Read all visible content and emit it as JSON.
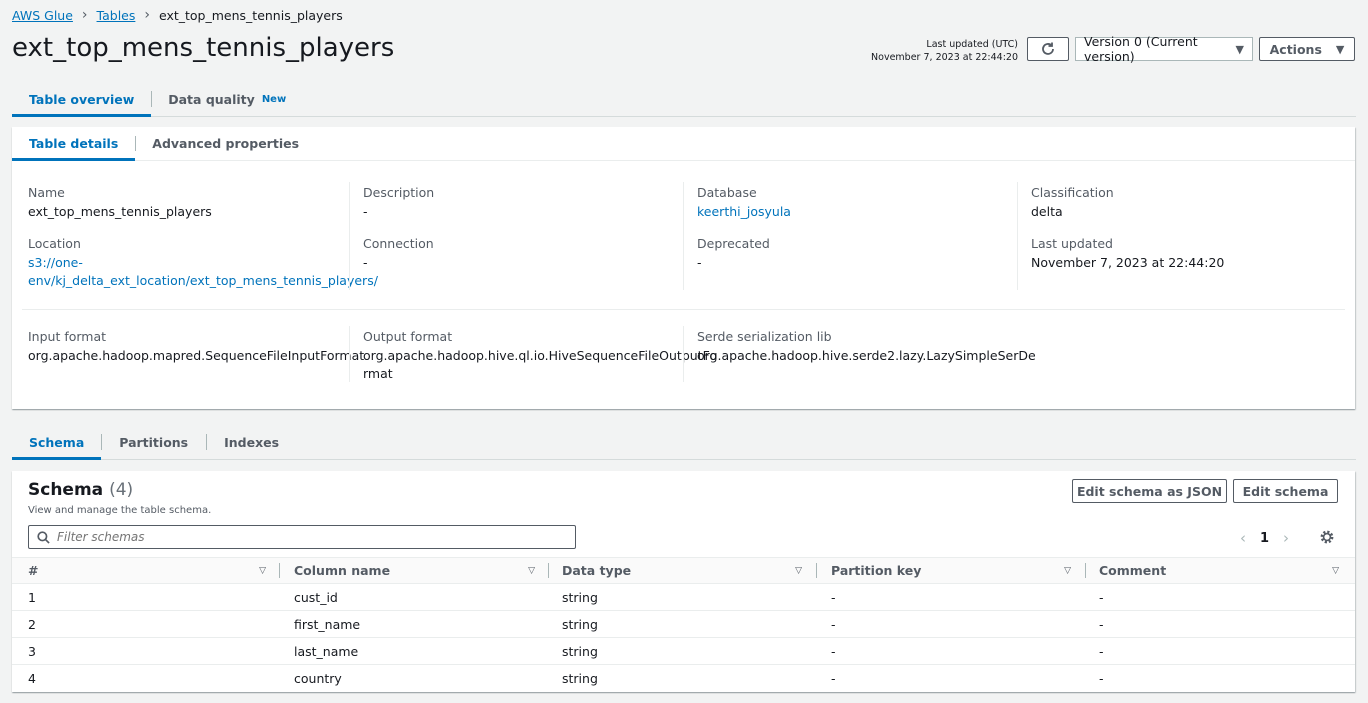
{
  "breadcrumb": [
    "AWS Glue",
    "Tables",
    "ext_top_mens_tennis_players"
  ],
  "title": "ext_top_mens_tennis_players",
  "last_updated_header": {
    "label": "Last updated (UTC)",
    "value": "November 7, 2023 at 22:44:20"
  },
  "version_select": "Version 0 (Current version)",
  "actions_label": "Actions",
  "main_tabs": [
    {
      "label": "Table overview"
    },
    {
      "label": "Data quality",
      "badge": "New"
    }
  ],
  "detail_tabs": [
    "Table details",
    "Advanced properties"
  ],
  "details": {
    "name": {
      "label": "Name",
      "value": "ext_top_mens_tennis_players"
    },
    "description": {
      "label": "Description",
      "value": "-"
    },
    "database": {
      "label": "Database",
      "value": "keerthi_josyula"
    },
    "classification": {
      "label": "Classification",
      "value": "delta"
    },
    "location": {
      "label": "Location",
      "line1": "s3://one-",
      "line2": "env/kj_delta_ext_location/ext_top_mens_tennis_players/"
    },
    "connection": {
      "label": "Connection",
      "value": "-"
    },
    "deprecated": {
      "label": "Deprecated",
      "value": "-"
    },
    "last_updated": {
      "label": "Last updated",
      "value": "November 7, 2023 at 22:44:20"
    },
    "input_format": {
      "label": "Input format",
      "value": "org.apache.hadoop.mapred.SequenceFileInputFormat"
    },
    "output_format": {
      "label": "Output format",
      "line1": "org.apache.hadoop.hive.ql.io.HiveSequenceFileOutputFo",
      "line2": "rmat"
    },
    "serde": {
      "label": "Serde serialization lib",
      "value": "org.apache.hadoop.hive.serde2.lazy.LazySimpleSerDe"
    }
  },
  "lower_tabs": [
    "Schema",
    "Partitions",
    "Indexes"
  ],
  "schema": {
    "heading": "Schema",
    "count": "(4)",
    "subtitle": "View and manage the table schema.",
    "edit_json_label": "Edit schema as JSON",
    "edit_label": "Edit schema",
    "filter_placeholder": "Filter schemas",
    "page": "1",
    "columns": [
      "#",
      "Column name",
      "Data type",
      "Partition key",
      "Comment"
    ],
    "rows": [
      [
        "1",
        "cust_id",
        "string",
        "-",
        "-"
      ],
      [
        "2",
        "first_name",
        "string",
        "-",
        "-"
      ],
      [
        "3",
        "last_name",
        "string",
        "-",
        "-"
      ],
      [
        "4",
        "country",
        "string",
        "-",
        "-"
      ]
    ]
  }
}
